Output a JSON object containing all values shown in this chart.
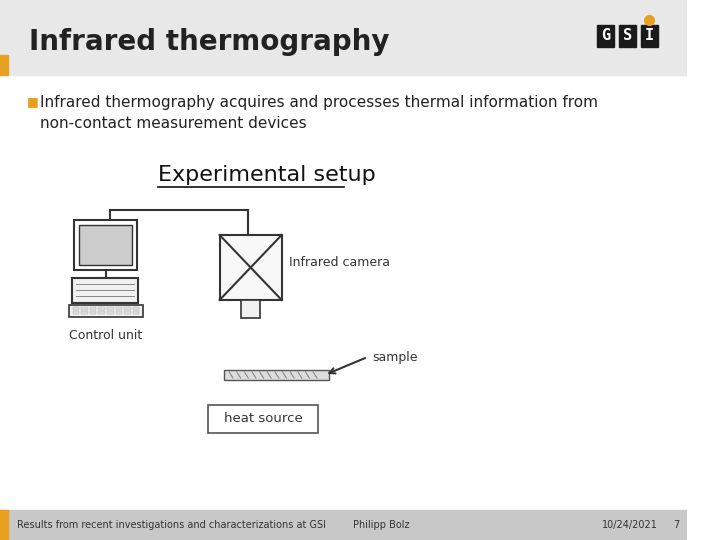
{
  "title": "Infrared thermography",
  "bullet_text": "Infrared thermography acquires and processes thermal information from\nnon-contact measurement devices",
  "section_title": "Experimental setup",
  "label_camera": "Infrared camera",
  "label_control": "Control unit",
  "label_sample": "sample",
  "label_heat": "heat source",
  "footer_left": "Results from recent investigations and characterizations at GSI",
  "footer_center": "Philipp Bolz",
  "footer_date": "10/24/2021",
  "footer_page": "7",
  "slide_bg": "#ffffff",
  "header_bar_color": "#e8e8e8",
  "left_accent_color": "#e8a020",
  "title_fontsize": 20,
  "bullet_fontsize": 11,
  "section_fontsize": 16
}
